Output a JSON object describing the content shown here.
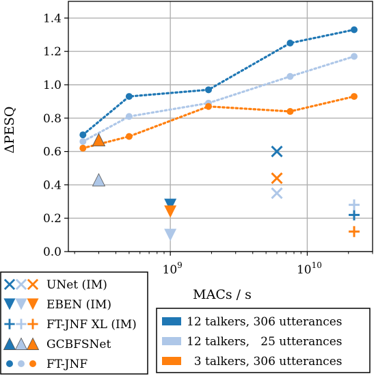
{
  "chart_data": {
    "type": "scatter",
    "xlabel": "MACs / s",
    "ylabel": "ΔPESQ",
    "xscale": "log",
    "xlim": [
      180000000,
      30000000000
    ],
    "ylim": [
      0.0,
      1.5
    ],
    "grid": true,
    "yticks": [
      0.0,
      0.2,
      0.4,
      0.6,
      0.8,
      1.0,
      1.2,
      1.4
    ],
    "ytick_labels": [
      "0.0",
      "0.2",
      "0.4",
      "0.6",
      "0.8",
      "1.0",
      "1.2",
      "1.4"
    ],
    "xticks": [
      1000000000,
      10000000000
    ],
    "xtick_labels": [
      {
        "base": "10",
        "exp": "9"
      },
      {
        "base": "10",
        "exp": "10"
      }
    ],
    "colors": {
      "dark_blue": "#1f77b4",
      "light_blue": "#aec7e8",
      "orange": "#ff7f0e",
      "grid": "#b0b0b0"
    },
    "legend_models": {
      "placement": "lower-left",
      "entries": [
        {
          "label": "UNet (IM)",
          "marker": "x"
        },
        {
          "label": "EBEN (IM)",
          "marker": "triangle-down"
        },
        {
          "label": "FT-JNF XL (IM)",
          "marker": "plus"
        },
        {
          "label": "GCBFSNet",
          "marker": "triangle-up"
        },
        {
          "label": "FT-JNF",
          "marker": "circle"
        }
      ]
    },
    "legend_datasets": {
      "placement": "lower-right",
      "entries": [
        {
          "label": "12 talkers, 306 utterances",
          "color": "#1f77b4"
        },
        {
          "label": "12 talkers,   25 utterances",
          "color": "#aec7e8"
        },
        {
          "label": "  3 talkers, 306 utterances",
          "color": "#ff7f0e"
        }
      ]
    },
    "series": [
      {
        "model": "FT-JNF",
        "color": "#1f77b4",
        "marker": "circle",
        "line": true,
        "points": [
          [
            230000000,
            0.7
          ],
          [
            500000000,
            0.93
          ],
          [
            1900000000,
            0.97
          ],
          [
            7500000000,
            1.25
          ],
          [
            22000000000,
            1.33
          ]
        ]
      },
      {
        "model": "FT-JNF",
        "color": "#aec7e8",
        "marker": "circle",
        "line": true,
        "points": [
          [
            230000000,
            0.66
          ],
          [
            500000000,
            0.81
          ],
          [
            1900000000,
            0.89
          ],
          [
            7500000000,
            1.05
          ],
          [
            22000000000,
            1.17
          ]
        ]
      },
      {
        "model": "FT-JNF",
        "color": "#ff7f0e",
        "marker": "circle",
        "line": true,
        "points": [
          [
            230000000,
            0.62
          ],
          [
            500000000,
            0.69
          ],
          [
            1900000000,
            0.87
          ],
          [
            7500000000,
            0.84
          ],
          [
            22000000000,
            0.93
          ]
        ]
      },
      {
        "model": "UNet (IM)",
        "color": "#1f77b4",
        "marker": "x",
        "points": [
          [
            6000000000,
            0.6
          ]
        ]
      },
      {
        "model": "UNet (IM)",
        "color": "#aec7e8",
        "marker": "x",
        "points": [
          [
            6000000000,
            0.35
          ]
        ]
      },
      {
        "model": "UNet (IM)",
        "color": "#ff7f0e",
        "marker": "x",
        "points": [
          [
            6000000000,
            0.44
          ]
        ]
      },
      {
        "model": "EBEN (IM)",
        "color": "#1f77b4",
        "marker": "triangle-down",
        "points": [
          [
            1000000000,
            0.28
          ]
        ]
      },
      {
        "model": "EBEN (IM)",
        "color": "#aec7e8",
        "marker": "triangle-down",
        "points": [
          [
            1000000000,
            0.1
          ]
        ]
      },
      {
        "model": "EBEN (IM)",
        "color": "#ff7f0e",
        "marker": "triangle-down",
        "points": [
          [
            1000000000,
            0.24
          ]
        ]
      },
      {
        "model": "FT-JNF XL (IM)",
        "color": "#1f77b4",
        "marker": "plus",
        "points": [
          [
            22000000000,
            0.22
          ]
        ]
      },
      {
        "model": "FT-JNF XL (IM)",
        "color": "#aec7e8",
        "marker": "plus",
        "points": [
          [
            22000000000,
            0.28
          ]
        ]
      },
      {
        "model": "FT-JNF XL (IM)",
        "color": "#ff7f0e",
        "marker": "plus",
        "points": [
          [
            22000000000,
            0.12
          ]
        ]
      },
      {
        "model": "GCBFSNet",
        "color": "#1f77b4",
        "marker": "triangle-up",
        "points": [
          [
            300000000,
            0.67
          ]
        ]
      },
      {
        "model": "GCBFSNet",
        "color": "#aec7e8",
        "marker": "triangle-up",
        "points": [
          [
            300000000,
            0.43
          ]
        ]
      },
      {
        "model": "GCBFSNet",
        "color": "#ff7f0e",
        "marker": "triangle-up",
        "points": [
          [
            300000000,
            0.67
          ]
        ]
      }
    ]
  }
}
